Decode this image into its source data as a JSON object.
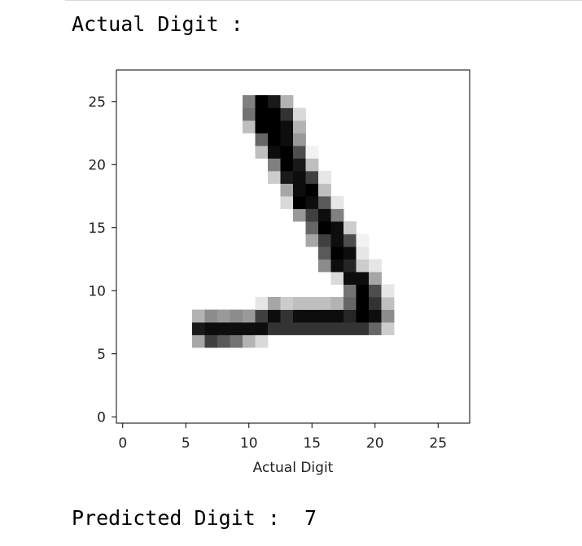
{
  "output": {
    "actual_title": "Actual Digit :",
    "predicted_label": "Predicted Digit :",
    "predicted_value": "7"
  },
  "chart_data": {
    "type": "heatmap",
    "title": "",
    "xlabel": "Actual Digit",
    "ylabel": "",
    "xlim": [
      -0.5,
      27.5
    ],
    "ylim": [
      27.5,
      -0.5
    ],
    "x_ticks": [
      0,
      5,
      10,
      15,
      20,
      25
    ],
    "y_ticks": [
      0,
      5,
      10,
      15,
      20,
      25
    ],
    "colormap": "binary",
    "grid": false,
    "pixels": [
      {
        "row": 7,
        "cols": [
          6,
          7,
          8,
          9,
          10,
          11
        ],
        "values": [
          0.35,
          0.75,
          0.65,
          0.55,
          0.3,
          0.15
        ]
      },
      {
        "row": 8,
        "cols": [
          6,
          7,
          8,
          9,
          10,
          11,
          12,
          13,
          14,
          15,
          16,
          17,
          18,
          19,
          20,
          21
        ],
        "values": [
          0.9,
          0.95,
          0.95,
          0.95,
          0.95,
          0.95,
          0.8,
          0.8,
          0.8,
          0.8,
          0.8,
          0.8,
          0.8,
          0.8,
          0.6,
          0.2
        ]
      },
      {
        "row": 9,
        "cols": [
          6,
          7,
          8,
          9,
          10,
          11,
          12,
          13,
          14,
          15,
          16,
          17,
          18,
          19,
          20,
          21
        ],
        "values": [
          0.3,
          0.45,
          0.4,
          0.45,
          0.4,
          0.75,
          0.95,
          0.8,
          0.95,
          0.95,
          0.95,
          0.95,
          0.85,
          1.0,
          0.95,
          0.45
        ]
      },
      {
        "row": 10,
        "cols": [
          11,
          12,
          13,
          14,
          15,
          16,
          17,
          18,
          19,
          20,
          21
        ],
        "values": [
          0.1,
          0.35,
          0.2,
          0.25,
          0.25,
          0.25,
          0.3,
          0.6,
          1.0,
          0.8,
          0.25
        ]
      },
      {
        "row": 11,
        "cols": [
          18,
          19,
          20,
          21
        ],
        "values": [
          0.55,
          1.0,
          0.7,
          0.1
        ]
      },
      {
        "row": 12,
        "cols": [
          17,
          18,
          19,
          20
        ],
        "values": [
          0.15,
          0.95,
          0.95,
          0.35
        ]
      },
      {
        "row": 13,
        "cols": [
          16,
          17,
          18,
          19,
          20
        ],
        "values": [
          0.45,
          0.95,
          0.85,
          0.2,
          0.1
        ]
      },
      {
        "row": 14,
        "cols": [
          16,
          17,
          18,
          19
        ],
        "values": [
          0.65,
          1.0,
          0.95,
          0.1
        ]
      },
      {
        "row": 15,
        "cols": [
          15,
          16,
          17,
          18,
          19
        ],
        "values": [
          0.35,
          0.75,
          0.95,
          0.7,
          0.05
        ]
      },
      {
        "row": 16,
        "cols": [
          15,
          16,
          17,
          18
        ],
        "values": [
          0.6,
          1.0,
          0.95,
          0.2
        ]
      },
      {
        "row": 17,
        "cols": [
          14,
          15,
          16,
          17
        ],
        "values": [
          0.4,
          0.75,
          0.95,
          0.5
        ]
      },
      {
        "row": 18,
        "cols": [
          13,
          14,
          15,
          16,
          17
        ],
        "values": [
          0.15,
          1.0,
          0.95,
          0.65,
          0.1
        ]
      },
      {
        "row": 19,
        "cols": [
          13,
          14,
          15,
          16
        ],
        "values": [
          0.35,
          0.95,
          1.0,
          0.25
        ]
      },
      {
        "row": 20,
        "cols": [
          12,
          13,
          14,
          15,
          16
        ],
        "values": [
          0.2,
          0.9,
          0.95,
          0.75,
          0.1
        ]
      },
      {
        "row": 21,
        "cols": [
          12,
          13,
          14,
          15
        ],
        "values": [
          0.5,
          1.0,
          0.9,
          0.25
        ]
      },
      {
        "row": 22,
        "cols": [
          11,
          12,
          13,
          14,
          15
        ],
        "values": [
          0.25,
          0.95,
          1.0,
          0.7,
          0.05
        ]
      },
      {
        "row": 23,
        "cols": [
          11,
          12,
          13,
          14
        ],
        "values": [
          0.6,
          1.0,
          0.95,
          0.4
        ]
      },
      {
        "row": 24,
        "cols": [
          10,
          11,
          12,
          13,
          14
        ],
        "values": [
          0.25,
          1.0,
          1.0,
          0.95,
          0.3
        ]
      },
      {
        "row": 25,
        "cols": [
          10,
          11,
          12,
          13,
          14
        ],
        "values": [
          0.55,
          1.0,
          1.0,
          0.8,
          0.15
        ]
      },
      {
        "row": 26,
        "cols": [
          10,
          11,
          12,
          13
        ],
        "values": [
          0.5,
          1.0,
          0.9,
          0.3
        ]
      }
    ]
  }
}
